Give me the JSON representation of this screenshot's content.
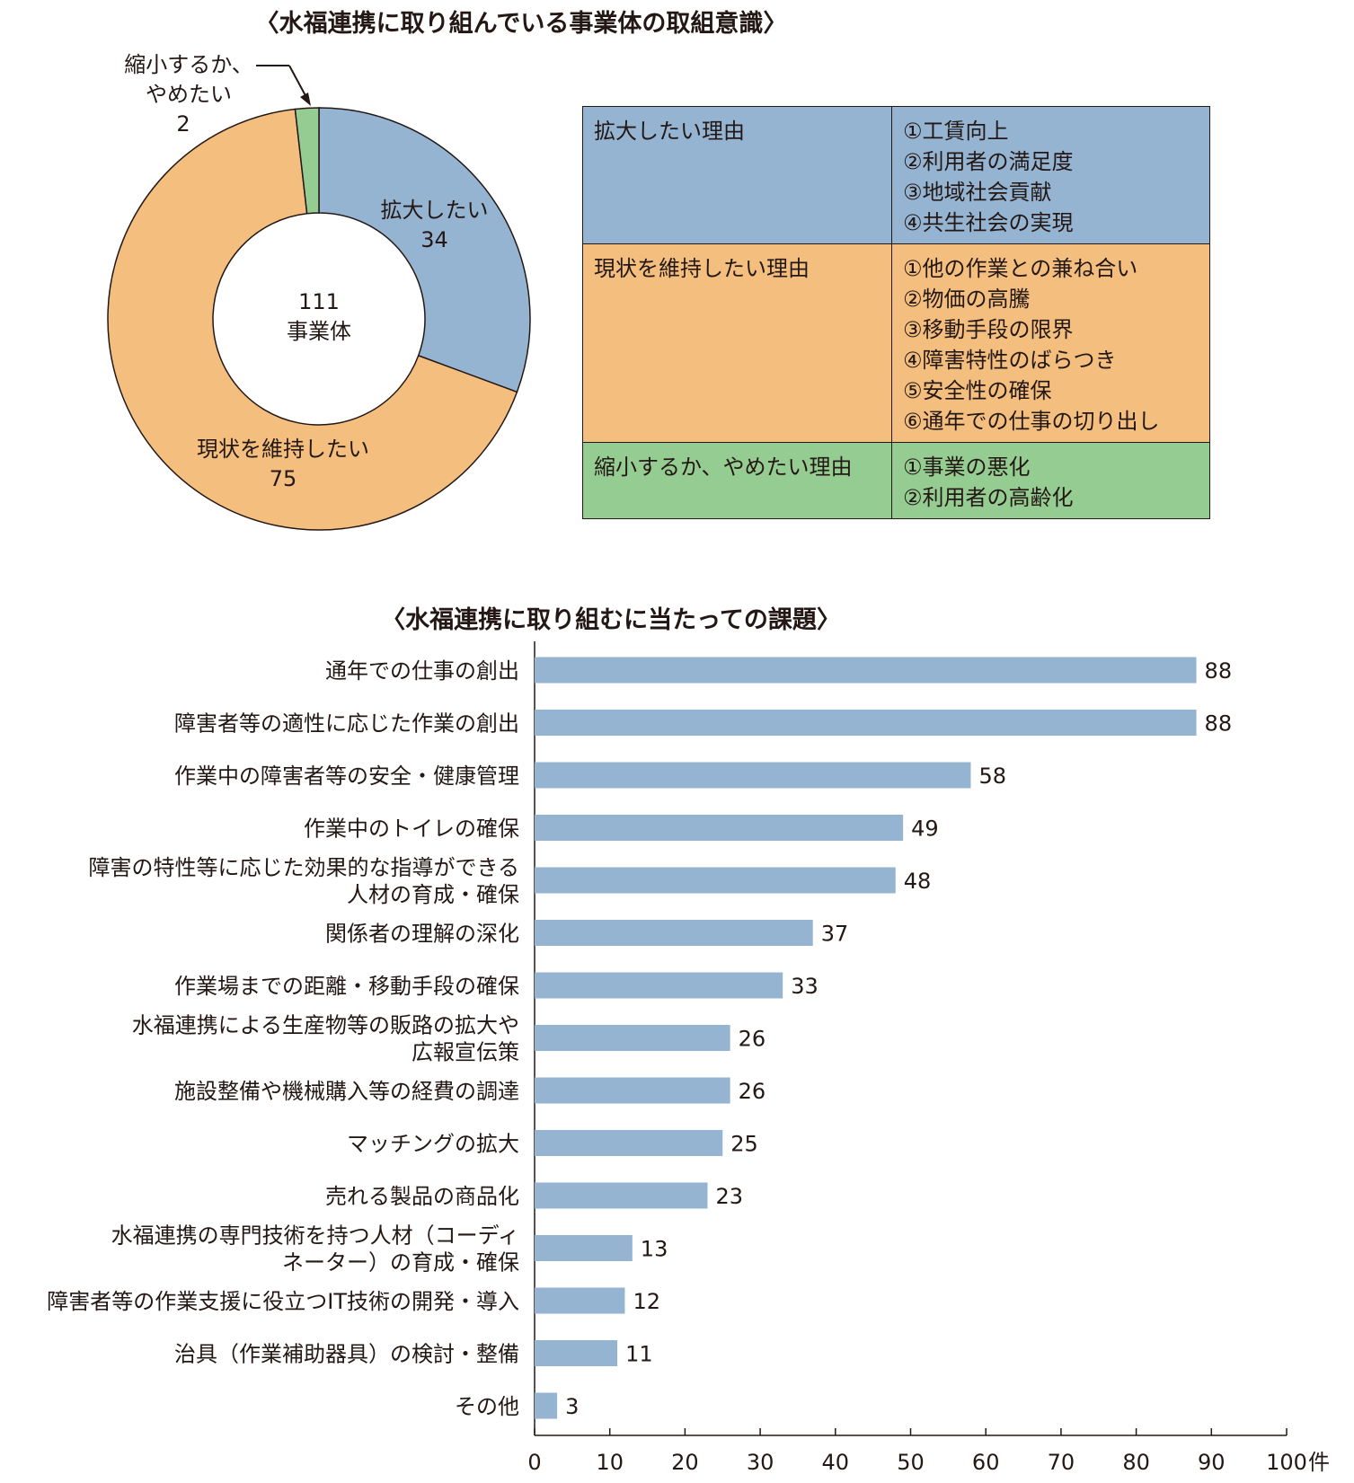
{
  "top_title": "〈水福連携に取り組んでいる事業体の取組意識〉",
  "bottom_title": "〈水福連携に取り組むに当たっての課題〉",
  "colors": {
    "expand": "#95b4d2",
    "maintain": "#f4bf7e",
    "shrink": "#95cc91",
    "bar": "#94b4d2",
    "axis": "#231815"
  },
  "chart_data": [
    {
      "type": "pie",
      "donut": true,
      "center_label": [
        "111",
        "事業体"
      ],
      "total": 111,
      "slices": [
        {
          "key": "expand",
          "label": "拡大したい",
          "value": 34,
          "color": "#95b4d2"
        },
        {
          "key": "maintain",
          "label": "現状を維持したい",
          "value": 75,
          "color": "#f4bf7e"
        },
        {
          "key": "shrink",
          "label_lines": [
            "縮小するか、",
            "やめたい"
          ],
          "value": 2,
          "color": "#95cc91"
        }
      ]
    },
    {
      "type": "bar",
      "orientation": "horizontal",
      "categories": [
        [
          "通年での仕事の創出"
        ],
        [
          "障害者等の適性に応じた作業の創出"
        ],
        [
          "作業中の障害者等の安全・健康管理"
        ],
        [
          "作業中のトイレの確保"
        ],
        [
          "障害の特性等に応じた効果的な指導ができる",
          "人材の育成・確保"
        ],
        [
          "関係者の理解の深化"
        ],
        [
          "作業場までの距離・移動手段の確保"
        ],
        [
          "水福連携による生産物等の販路の拡大や",
          "広報宣伝策"
        ],
        [
          "施設整備や機械購入等の経費の調達"
        ],
        [
          "マッチングの拡大"
        ],
        [
          "売れる製品の商品化"
        ],
        [
          "水福連携の専門技術を持つ人材（コーディ",
          "ネーター）の育成・確保"
        ],
        [
          "障害者等の作業支援に役立つIT技術の開発・導入"
        ],
        [
          "治具（作業補助器具）の検討・整備"
        ],
        [
          "その他"
        ]
      ],
      "values": [
        88,
        88,
        58,
        49,
        48,
        37,
        33,
        26,
        26,
        25,
        23,
        13,
        12,
        11,
        3
      ],
      "xlim": [
        0,
        100
      ],
      "xticks": [
        "0",
        "10",
        "20",
        "30",
        "40",
        "50",
        "60",
        "70",
        "80",
        "90",
        "100"
      ],
      "xunit": "件"
    }
  ],
  "reasons_table": [
    {
      "key": "expand",
      "heading": "拡大したい理由",
      "color": "#95b4d2",
      "items": [
        "①工賃向上",
        "②利用者の満足度",
        "③地域社会貢献",
        "④共生社会の実現"
      ]
    },
    {
      "key": "maintain",
      "heading": "現状を維持したい理由",
      "color": "#f4bf7e",
      "items": [
        "①他の作業との兼ね合い",
        "②物価の高騰",
        "③移動手段の限界",
        "④障害特性のばらつき",
        "⑤安全性の確保",
        "⑥通年での仕事の切り出し"
      ]
    },
    {
      "key": "shrink",
      "heading": "縮小するか、やめたい理由",
      "color": "#95cc91",
      "items": [
        "①事業の悪化",
        "②利用者の高齢化"
      ]
    }
  ]
}
